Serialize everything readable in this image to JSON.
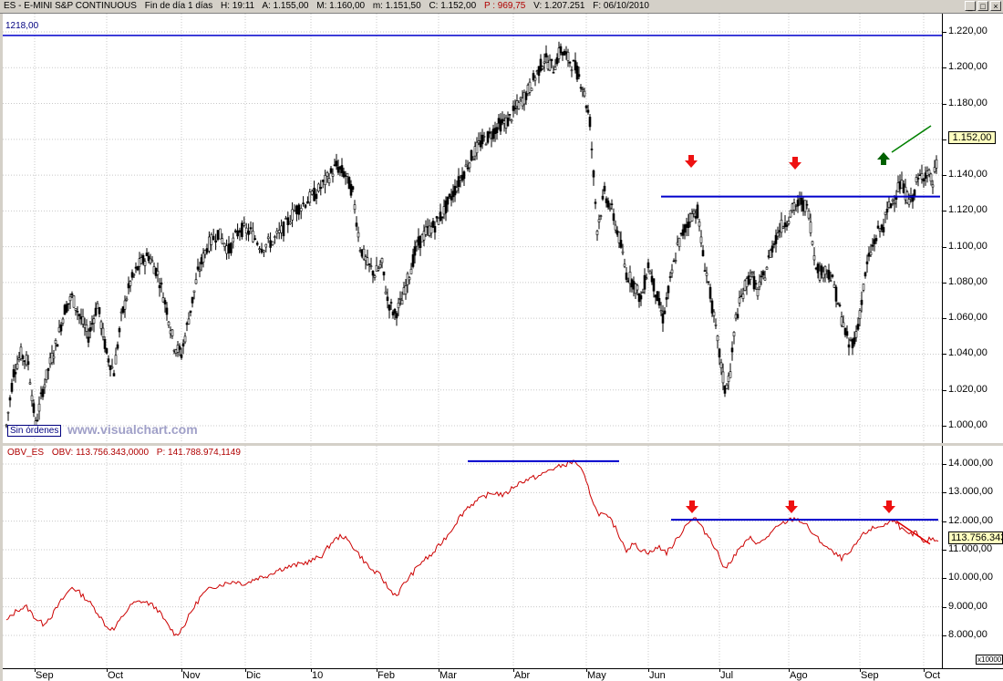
{
  "title_bar": {
    "symbol": "ES - E-MINI S&P CONTINUOUS",
    "period": "Fin de día 1 días",
    "hour": "H: 19:11",
    "open": "A: 1.155,00",
    "high": "M: 1.160,00",
    "low": "m: 1.151,50",
    "close": "C: 1.152,00",
    "p": "P : 969,75",
    "volume": "V: 1.207.251",
    "date": "F: 06/10/2010"
  },
  "window_buttons": [
    "_",
    "□",
    "×"
  ],
  "price_panel": {
    "level_label": "1218,00",
    "sin_ordenes": "Sin órdenes",
    "watermark": "www.visualchart.com",
    "last_price_tag": "1.152,00",
    "y_ticks": [
      "1.220,00",
      "1.200,00",
      "1.180,00",
      "1.160,00",
      "1.140,00",
      "1.120,00",
      "1.100,00",
      "1.080,00",
      "1.060,00",
      "1.040,00",
      "1.020,00",
      "1.000,00"
    ]
  },
  "obv_panel": {
    "name": "OBV_ES",
    "obv_value": "OBV: 113.756.343,0000",
    "p_value": "P: 141.788.974,1149",
    "last_tag": "113.756.343",
    "scale_unit": "x10000",
    "y_ticks": [
      "14.000,00",
      "13.000,00",
      "12.000,00",
      "11.000,00",
      "10.000,00",
      "9.000,00",
      "8.000,00"
    ]
  },
  "x_axis": {
    "labels": [
      "Sep",
      "Oct",
      "Nov",
      "Dic",
      "10",
      "Feb",
      "Mar",
      "Abr",
      "May",
      "Jun",
      "Jul",
      "Ago",
      "Sep",
      "Oct"
    ]
  },
  "colors": {
    "price_line": "#000000",
    "obv_line": "#cc0000",
    "horizontal_lines": "#0000cc",
    "down_arrow": "#ee1111",
    "up_arrow": "#006000",
    "trend_green": "#008000",
    "trend_red": "#dd0000"
  },
  "chart_data": [
    {
      "type": "candlestick",
      "ylim": [
        990,
        1225
      ],
      "x_months": [
        "Sep",
        "Oct",
        "Nov",
        "Dic",
        "10",
        "Feb",
        "Mar",
        "Abr",
        "May",
        "Jun",
        "Jul",
        "Ago",
        "Sep",
        "Oct"
      ],
      "close_path": [
        [
          0,
          1000
        ],
        [
          8,
          1030
        ],
        [
          16,
          1040
        ],
        [
          24,
          1035
        ],
        [
          32,
          1000
        ],
        [
          40,
          1020
        ],
        [
          48,
          1035
        ],
        [
          56,
          1048
        ],
        [
          64,
          1065
        ],
        [
          72,
          1072
        ],
        [
          80,
          1062
        ],
        [
          90,
          1050
        ],
        [
          100,
          1068
        ],
        [
          110,
          1040
        ],
        [
          118,
          1030
        ],
        [
          126,
          1060
        ],
        [
          136,
          1080
        ],
        [
          146,
          1090
        ],
        [
          156,
          1095
        ],
        [
          166,
          1085
        ],
        [
          176,
          1065
        ],
        [
          184,
          1045
        ],
        [
          192,
          1040
        ],
        [
          200,
          1060
        ],
        [
          210,
          1085
        ],
        [
          220,
          1100
        ],
        [
          232,
          1108
        ],
        [
          244,
          1098
        ],
        [
          256,
          1110
        ],
        [
          268,
          1108
        ],
        [
          280,
          1100
        ],
        [
          292,
          1103
        ],
        [
          304,
          1110
        ],
        [
          316,
          1120
        ],
        [
          328,
          1125
        ],
        [
          340,
          1130
        ],
        [
          352,
          1138
        ],
        [
          362,
          1145
        ],
        [
          372,
          1140
        ],
        [
          380,
          1130
        ],
        [
          388,
          1100
        ],
        [
          396,
          1090
        ],
        [
          404,
          1085
        ],
        [
          412,
          1090
        ],
        [
          418,
          1070
        ],
        [
          426,
          1062
        ],
        [
          434,
          1070
        ],
        [
          442,
          1085
        ],
        [
          450,
          1100
        ],
        [
          460,
          1108
        ],
        [
          470,
          1112
        ],
        [
          480,
          1120
        ],
        [
          490,
          1130
        ],
        [
          500,
          1140
        ],
        [
          510,
          1150
        ],
        [
          520,
          1158
        ],
        [
          530,
          1162
        ],
        [
          540,
          1168
        ],
        [
          550,
          1170
        ],
        [
          560,
          1178
        ],
        [
          570,
          1185
        ],
        [
          580,
          1195
        ],
        [
          590,
          1205
        ],
        [
          600,
          1200
        ],
        [
          608,
          1210
        ],
        [
          616,
          1205
        ],
        [
          624,
          1200
        ],
        [
          632,
          1190
        ],
        [
          640,
          1170
        ],
        [
          648,
          1110
        ],
        [
          656,
          1130
        ],
        [
          664,
          1120
        ],
        [
          672,
          1105
        ],
        [
          680,
          1085
        ],
        [
          688,
          1080
        ],
        [
          696,
          1070
        ],
        [
          704,
          1090
        ],
        [
          712,
          1075
        ],
        [
          720,
          1060
        ],
        [
          728,
          1080
        ],
        [
          736,
          1100
        ],
        [
          744,
          1110
        ],
        [
          752,
          1118
        ],
        [
          758,
          1120
        ],
        [
          764,
          1095
        ],
        [
          770,
          1080
        ],
        [
          776,
          1060
        ],
        [
          782,
          1040
        ],
        [
          788,
          1020
        ],
        [
          794,
          1030
        ],
        [
          800,
          1060
        ],
        [
          808,
          1075
        ],
        [
          816,
          1085
        ],
        [
          824,
          1075
        ],
        [
          832,
          1085
        ],
        [
          840,
          1100
        ],
        [
          848,
          1110
        ],
        [
          856,
          1115
        ],
        [
          864,
          1122
        ],
        [
          872,
          1125
        ],
        [
          880,
          1120
        ],
        [
          886,
          1095
        ],
        [
          892,
          1085
        ],
        [
          900,
          1088
        ],
        [
          908,
          1078
        ],
        [
          916,
          1060
        ],
        [
          924,
          1045
        ],
        [
          932,
          1050
        ],
        [
          938,
          1070
        ],
        [
          944,
          1090
        ],
        [
          950,
          1100
        ],
        [
          956,
          1108
        ],
        [
          962,
          1112
        ],
        [
          968,
          1122
        ],
        [
          974,
          1128
        ],
        [
          980,
          1135
        ],
        [
          986,
          1130
        ],
        [
          992,
          1125
        ],
        [
          998,
          1135
        ],
        [
          1004,
          1140
        ],
        [
          1010,
          1142
        ],
        [
          1016,
          1135
        ],
        [
          1022,
          1152
        ]
      ]
    },
    {
      "type": "line",
      "ylim": [
        7500,
        14200
      ],
      "x_months": [
        "Sep",
        "Oct",
        "Nov",
        "Dic",
        "10",
        "Feb",
        "Mar",
        "Abr",
        "May",
        "Jun",
        "Jul",
        "Ago",
        "Sep",
        "Oct"
      ],
      "obv_path": [
        [
          0,
          8500
        ],
        [
          12,
          8900
        ],
        [
          22,
          9000
        ],
        [
          32,
          8600
        ],
        [
          40,
          8400
        ],
        [
          50,
          8700
        ],
        [
          60,
          9200
        ],
        [
          72,
          9700
        ],
        [
          80,
          9500
        ],
        [
          90,
          9200
        ],
        [
          100,
          8800
        ],
        [
          110,
          8300
        ],
        [
          118,
          8200
        ],
        [
          128,
          8700
        ],
        [
          138,
          9100
        ],
        [
          148,
          9200
        ],
        [
          158,
          9100
        ],
        [
          166,
          8900
        ],
        [
          176,
          8400
        ],
        [
          186,
          8000
        ],
        [
          194,
          8300
        ],
        [
          204,
          8900
        ],
        [
          214,
          9400
        ],
        [
          226,
          9700
        ],
        [
          238,
          9800
        ],
        [
          250,
          9900
        ],
        [
          262,
          9800
        ],
        [
          274,
          10000
        ],
        [
          286,
          10100
        ],
        [
          298,
          10300
        ],
        [
          310,
          10400
        ],
        [
          322,
          10500
        ],
        [
          334,
          10600
        ],
        [
          346,
          10800
        ],
        [
          358,
          11300
        ],
        [
          368,
          11500
        ],
        [
          378,
          11200
        ],
        [
          390,
          10700
        ],
        [
          400,
          10300
        ],
        [
          410,
          10100
        ],
        [
          420,
          9600
        ],
        [
          428,
          9400
        ],
        [
          436,
          9800
        ],
        [
          446,
          10200
        ],
        [
          456,
          10600
        ],
        [
          466,
          10800
        ],
        [
          476,
          11200
        ],
        [
          486,
          11600
        ],
        [
          496,
          12100
        ],
        [
          506,
          12500
        ],
        [
          516,
          12700
        ],
        [
          526,
          12900
        ],
        [
          536,
          13000
        ],
        [
          546,
          12900
        ],
        [
          556,
          13200
        ],
        [
          566,
          13400
        ],
        [
          576,
          13500
        ],
        [
          586,
          13600
        ],
        [
          596,
          13800
        ],
        [
          606,
          13900
        ],
        [
          614,
          14000
        ],
        [
          624,
          14100
        ],
        [
          632,
          13700
        ],
        [
          640,
          13000
        ],
        [
          648,
          12300
        ],
        [
          656,
          12200
        ],
        [
          664,
          12000
        ],
        [
          672,
          11500
        ],
        [
          680,
          11000
        ],
        [
          688,
          11200
        ],
        [
          696,
          11000
        ],
        [
          706,
          10900
        ],
        [
          716,
          11100
        ],
        [
          724,
          10900
        ],
        [
          732,
          11200
        ],
        [
          740,
          11600
        ],
        [
          748,
          12000
        ],
        [
          756,
          12100
        ],
        [
          764,
          11700
        ],
        [
          772,
          11400
        ],
        [
          780,
          10900
        ],
        [
          788,
          10300
        ],
        [
          796,
          10700
        ],
        [
          806,
          11100
        ],
        [
          816,
          11400
        ],
        [
          826,
          11200
        ],
        [
          836,
          11500
        ],
        [
          846,
          11800
        ],
        [
          856,
          12000
        ],
        [
          866,
          12100
        ],
        [
          876,
          11900
        ],
        [
          886,
          11500
        ],
        [
          896,
          11200
        ],
        [
          906,
          10900
        ],
        [
          916,
          10700
        ],
        [
          926,
          10900
        ],
        [
          936,
          11400
        ],
        [
          946,
          11700
        ],
        [
          956,
          11800
        ],
        [
          966,
          11900
        ],
        [
          974,
          12100
        ],
        [
          982,
          11700
        ],
        [
          990,
          11500
        ],
        [
          998,
          11600
        ],
        [
          1006,
          11200
        ],
        [
          1014,
          11400
        ],
        [
          1022,
          11300
        ]
      ]
    }
  ]
}
